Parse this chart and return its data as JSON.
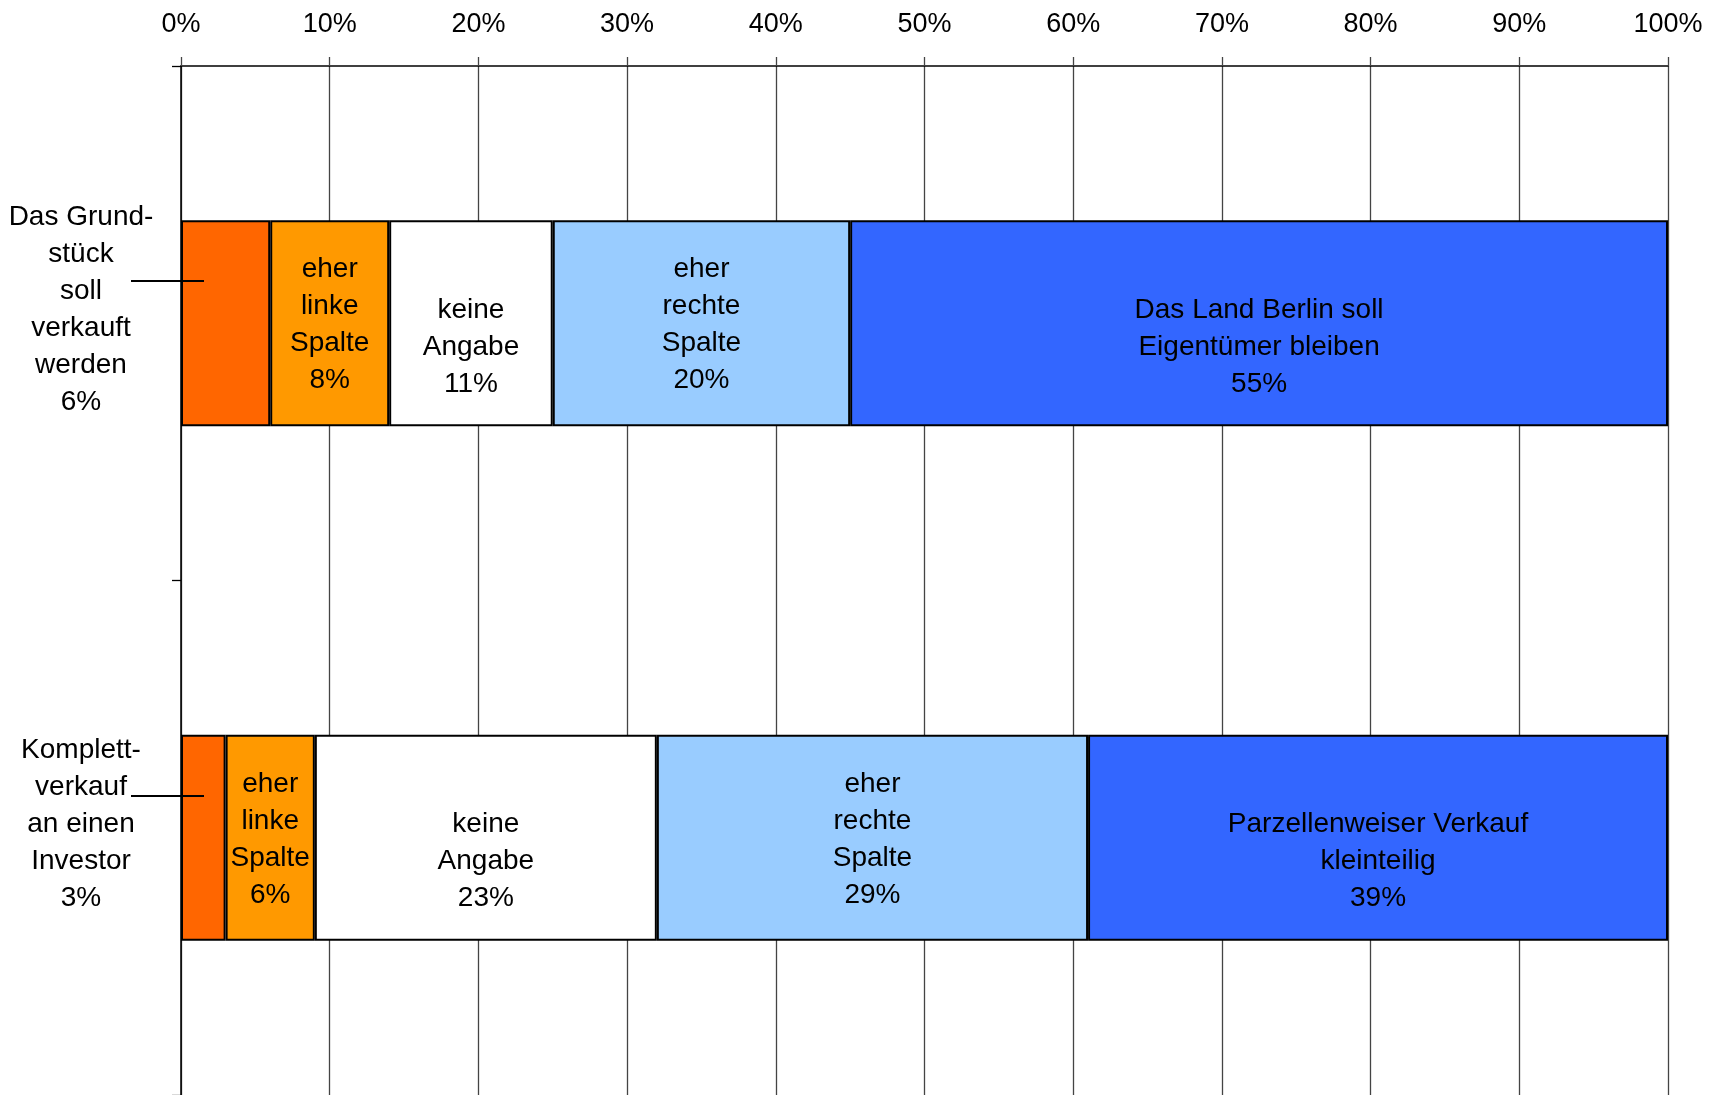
{
  "chart_data": {
    "type": "bar",
    "orientation": "horizontal",
    "stacked": true,
    "categories": [
      null,
      null
    ],
    "xlim": [
      0,
      100
    ],
    "xticks": [
      {
        "value": 0,
        "label": "0%"
      },
      {
        "value": 10,
        "label": "10%"
      },
      {
        "value": 20,
        "label": "20%"
      },
      {
        "value": 30,
        "label": "30%"
      },
      {
        "value": 40,
        "label": "40%"
      },
      {
        "value": 50,
        "label": "50%"
      },
      {
        "value": 60,
        "label": "60%"
      },
      {
        "value": 70,
        "label": "70%"
      },
      {
        "value": 80,
        "label": "80%"
      },
      {
        "value": 90,
        "label": "90%"
      },
      {
        "value": 100,
        "label": "100%"
      }
    ],
    "grid": "x",
    "series": [
      {
        "color": "#ff6600",
        "values": [
          6,
          3
        ],
        "value_labels": [
          "Das Grund-\nstück\nsoll\nverkauft\nwerden\n6%",
          "Komplett-\nverkauf\nan einen\nInvestor\n3%"
        ]
      },
      {
        "color": "#ff9900",
        "values": [
          8,
          6
        ],
        "value_labels": [
          "eher\nlinke\nSpalte\n8%",
          "eher\nlinke\nSpalte\n6%"
        ]
      },
      {
        "color": "#ffffff",
        "values": [
          11,
          23
        ],
        "value_labels": [
          "keine\nAngabe\n11%",
          "keine\nAngabe\n23%"
        ]
      },
      {
        "color": "#99ccff",
        "values": [
          20,
          29
        ],
        "value_labels": [
          "eher\nrechte\nSpalte\n20%",
          "eher\nrechte\nSpalte\n29%"
        ]
      },
      {
        "color": "#3366ff",
        "values": [
          55,
          39
        ],
        "value_labels": [
          "Das Land Berlin soll\nEigentümer bleiben\n55%",
          "Parzellenweiser Verkauf\nkleinteilig\n39%"
        ]
      }
    ]
  }
}
